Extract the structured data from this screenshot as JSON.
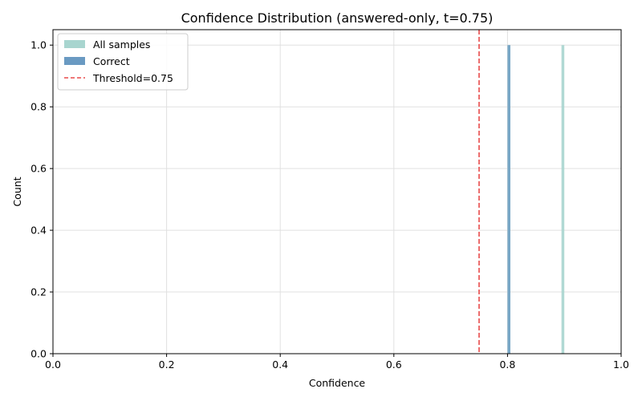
{
  "chart_data": {
    "type": "bar",
    "title": "Confidence Distribution (answered-only, t=0.75)",
    "xlabel": "Confidence",
    "ylabel": "Count",
    "xlim": [
      0.0,
      1.0
    ],
    "ylim": [
      0.0,
      1.05
    ],
    "x_ticks": [
      "0.0",
      "0.2",
      "0.4",
      "0.6",
      "0.8",
      "1.0"
    ],
    "y_ticks": [
      "0.0",
      "0.2",
      "0.4",
      "0.6",
      "0.8",
      "1.0"
    ],
    "grid": true,
    "legend_position": "top-left",
    "bin_width": 0.005,
    "series": [
      {
        "name": "All samples",
        "color": "#a8d5cf",
        "bins": [
          {
            "x": 0.8,
            "count": 1
          },
          {
            "x": 0.895,
            "count": 1
          }
        ]
      },
      {
        "name": "Correct",
        "color": "#6a9ac2",
        "bins": [
          {
            "x": 0.8,
            "count": 1
          }
        ]
      }
    ],
    "threshold": {
      "label": "Threshold=0.75",
      "value": 0.75,
      "color": "#e84a4a",
      "style": "dashed"
    }
  }
}
